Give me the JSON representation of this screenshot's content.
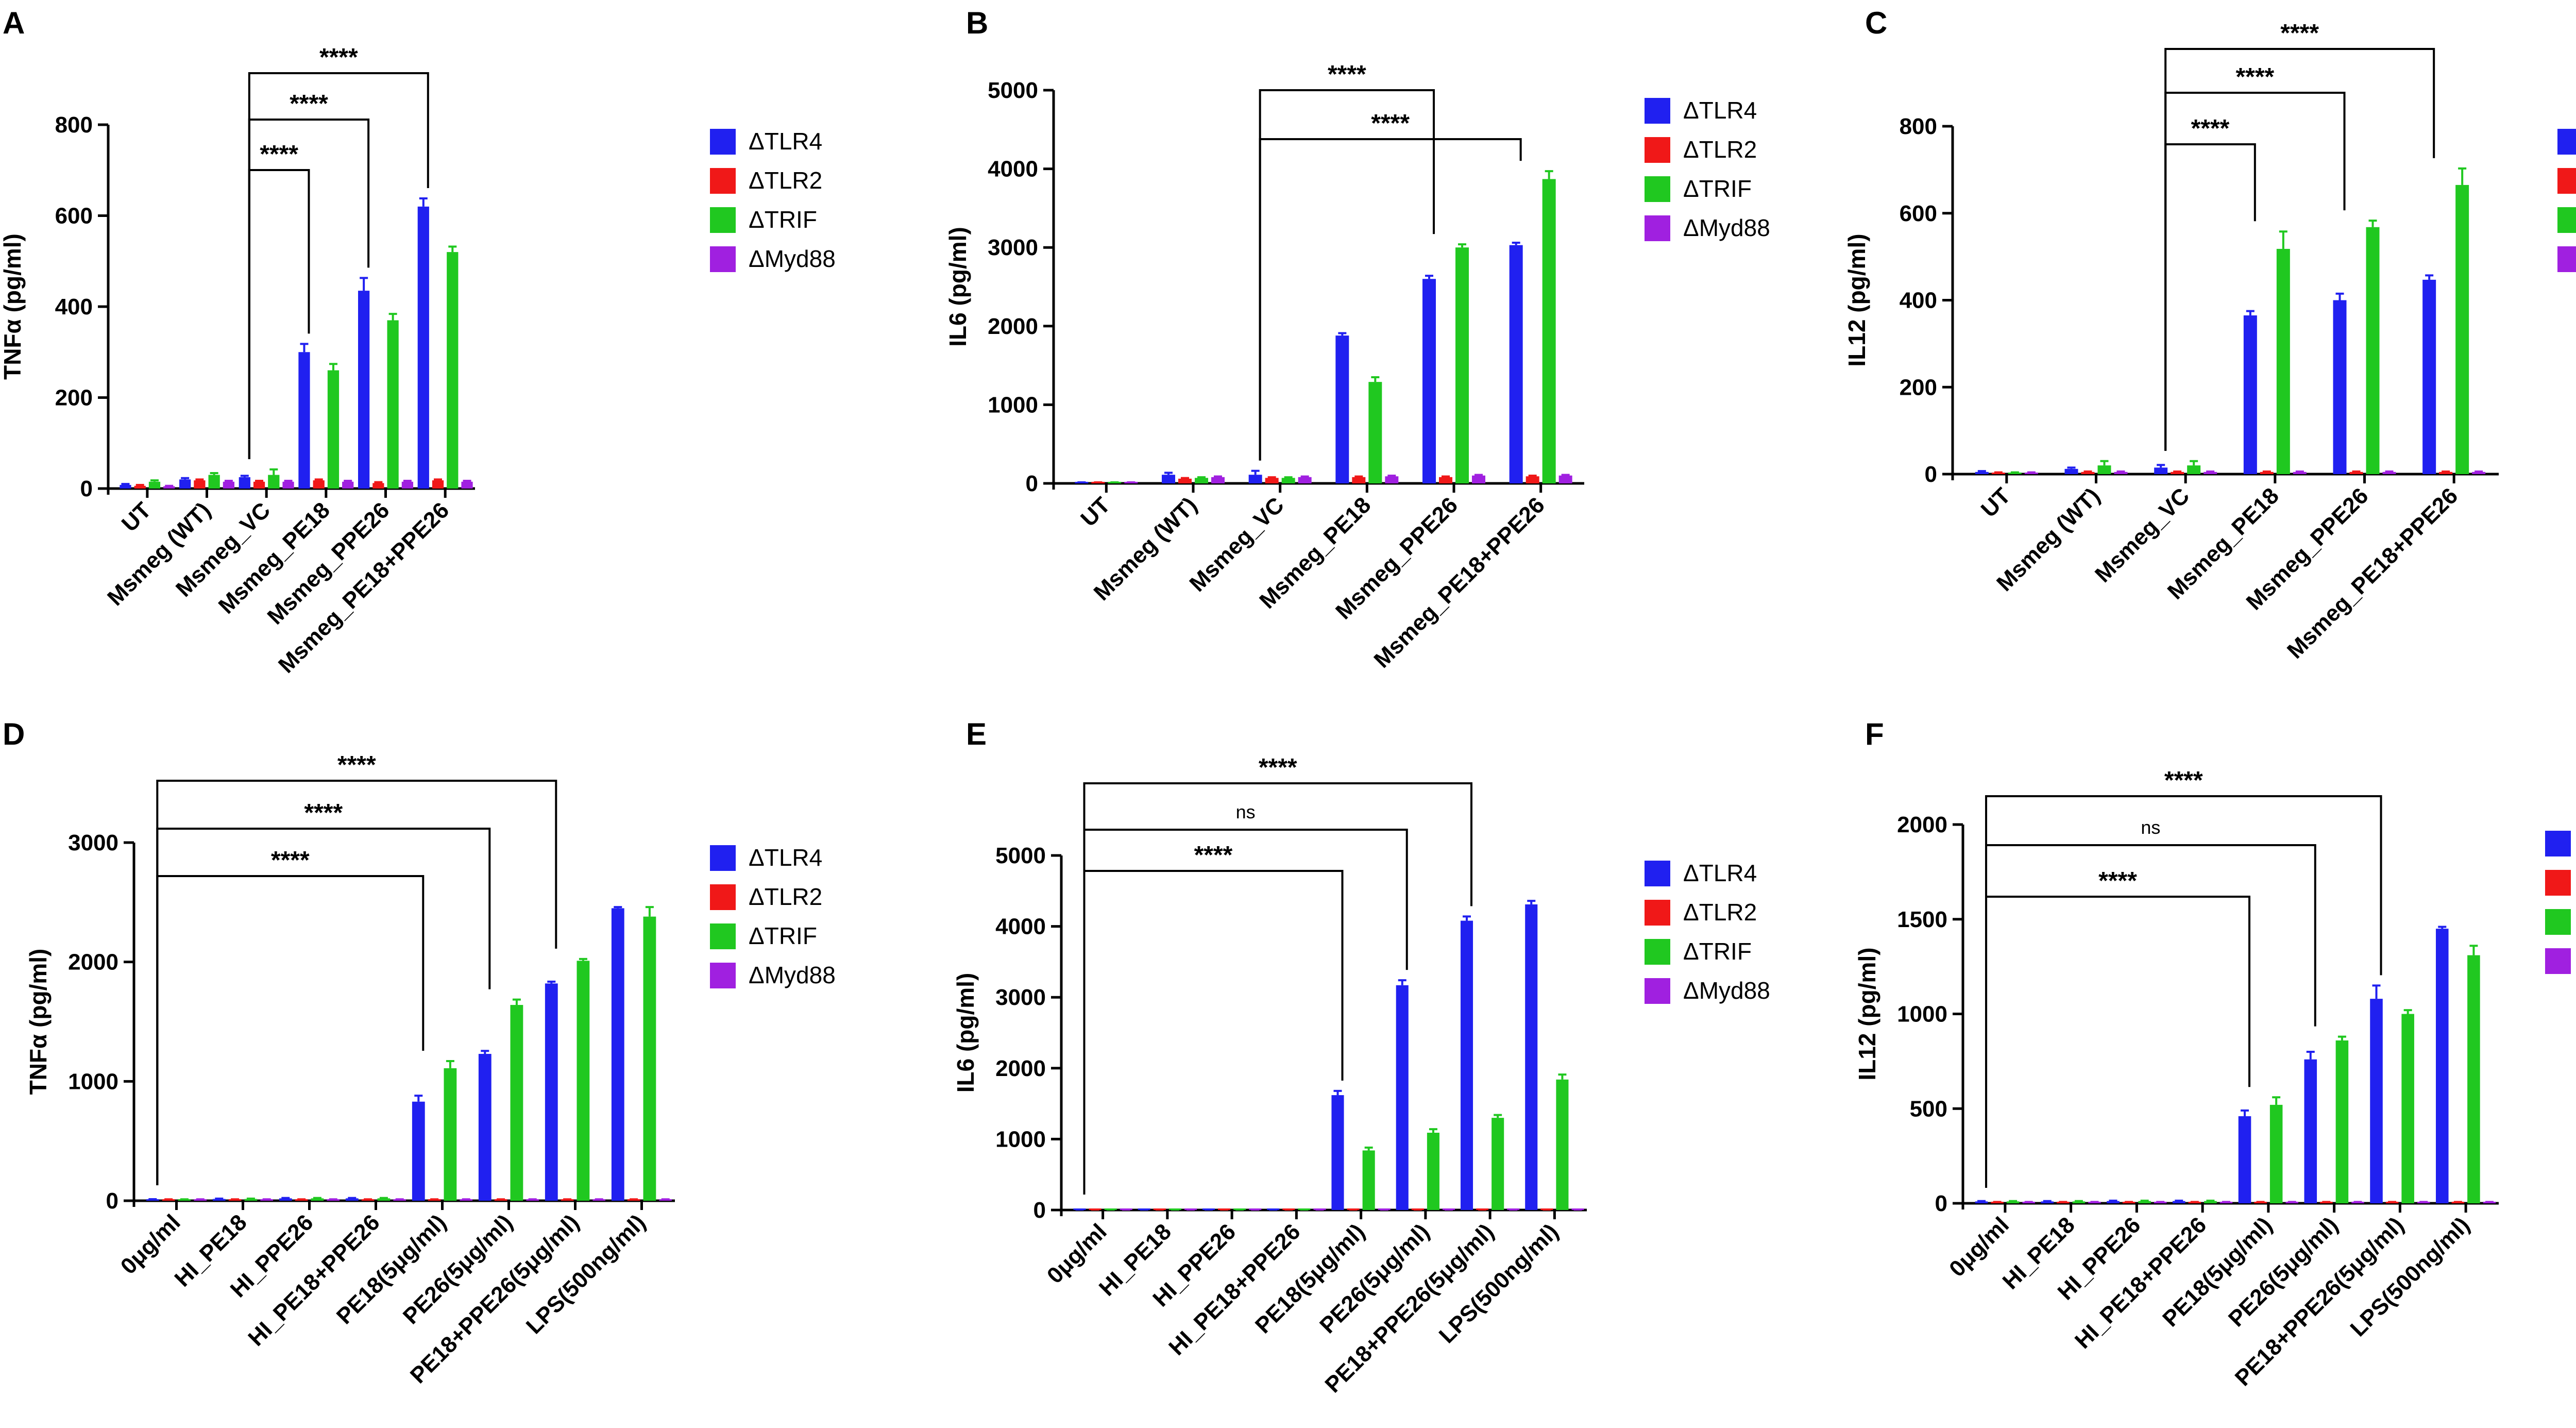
{
  "legend": [
    {
      "name": "ΔTLR4",
      "color": "#2020f0"
    },
    {
      "name": "ΔTLR2",
      "color": "#f01818"
    },
    {
      "name": "ΔTRIF",
      "color": "#20c820"
    },
    {
      "name": "ΔMyd88",
      "color": "#a020e0"
    }
  ],
  "chart_data": [
    {
      "panel": "A",
      "type": "bar",
      "ylabel": "TNFα (pg/ml)",
      "ylim": [
        0,
        800
      ],
      "yticks": [
        0,
        200,
        400,
        600,
        800
      ],
      "categories": [
        "UT",
        "Msmeg (WT)",
        "Msmeg_VC",
        "Msmeg_PE18",
        "Msmeg_PPE26",
        "Msmeg_PE18+PPE26"
      ],
      "series": [
        {
          "name": "ΔTLR4",
          "values": [
            8,
            20,
            25,
            300,
            435,
            620
          ],
          "errors": [
            2,
            3,
            3,
            18,
            28,
            18
          ]
        },
        {
          "name": "ΔTLR2",
          "values": [
            6,
            18,
            15,
            18,
            12,
            18
          ],
          "errors": [
            2,
            2,
            2,
            2,
            2,
            2
          ]
        },
        {
          "name": "ΔTRIF",
          "values": [
            15,
            30,
            30,
            260,
            370,
            520
          ],
          "errors": [
            3,
            4,
            12,
            14,
            14,
            12
          ]
        },
        {
          "name": "ΔMyd88",
          "values": [
            5,
            15,
            15,
            15,
            15,
            15
          ],
          "errors": [
            1,
            2,
            2,
            2,
            2,
            2
          ]
        }
      ],
      "brackets": [
        {
          "from": 2,
          "to": 3,
          "label": "****"
        },
        {
          "from": 2,
          "to": 4,
          "label": "****"
        },
        {
          "from": 2,
          "to": 5,
          "label": "****"
        }
      ]
    },
    {
      "panel": "B",
      "type": "bar",
      "ylabel": "IL6 (pg/ml)",
      "ylim": [
        0,
        5000
      ],
      "yticks": [
        0,
        1000,
        2000,
        3000,
        4000,
        5000
      ],
      "categories": [
        "UT",
        "Msmeg (WT)",
        "Msmeg_VC",
        "Msmeg_PE18",
        "Msmeg_PPE26",
        "Msmeg_PE18+PPE26"
      ],
      "series": [
        {
          "name": "ΔTLR4",
          "values": [
            10,
            110,
            110,
            1880,
            2600,
            3030
          ],
          "errors": [
            3,
            25,
            50,
            30,
            40,
            30
          ]
        },
        {
          "name": "ΔTLR2",
          "values": [
            10,
            60,
            70,
            80,
            80,
            90
          ],
          "errors": [
            3,
            8,
            8,
            8,
            8,
            8
          ]
        },
        {
          "name": "ΔTRIF",
          "values": [
            10,
            70,
            70,
            1290,
            3000,
            3870
          ],
          "errors": [
            3,
            8,
            8,
            60,
            40,
            100
          ]
        },
        {
          "name": "ΔMyd88",
          "values": [
            10,
            80,
            80,
            90,
            100,
            100
          ],
          "errors": [
            3,
            8,
            8,
            8,
            8,
            8
          ]
        }
      ],
      "brackets": [
        {
          "from": 2,
          "to": 4,
          "label": "****"
        },
        {
          "from": 2,
          "to": 5,
          "label": "****"
        }
      ]
    },
    {
      "panel": "C",
      "type": "bar",
      "ylabel": "IL12 (pg/ml)",
      "ylim": [
        0,
        800
      ],
      "yticks": [
        0,
        200,
        400,
        600,
        800
      ],
      "categories": [
        "UT",
        "Msmeg (WT)",
        "Msmeg_VC",
        "Msmeg_PE18",
        "Msmeg_PPE26",
        "Msmeg_PE18+PPE26"
      ],
      "series": [
        {
          "name": "ΔTLR4",
          "values": [
            5,
            12,
            15,
            365,
            400,
            447
          ],
          "errors": [
            2,
            3,
            6,
            10,
            15,
            10
          ]
        },
        {
          "name": "ΔTLR2",
          "values": [
            3,
            5,
            5,
            5,
            5,
            5
          ],
          "errors": [
            1,
            1,
            1,
            1,
            1,
            1
          ]
        },
        {
          "name": "ΔTRIF",
          "values": [
            3,
            20,
            20,
            518,
            568,
            665
          ],
          "errors": [
            1,
            10,
            10,
            40,
            15,
            38
          ]
        },
        {
          "name": "ΔMyd88",
          "values": [
            3,
            5,
            5,
            5,
            5,
            5
          ],
          "errors": [
            1,
            1,
            1,
            1,
            1,
            1
          ]
        }
      ],
      "brackets": [
        {
          "from": 2,
          "to": 3,
          "label": "****"
        },
        {
          "from": 2,
          "to": 4,
          "label": "****"
        },
        {
          "from": 2,
          "to": 5,
          "label": "****"
        }
      ]
    },
    {
      "panel": "D",
      "type": "bar",
      "ylabel": "TNFα (pg/ml)",
      "ylim": [
        0,
        3000
      ],
      "yticks": [
        0,
        1000,
        2000,
        3000
      ],
      "categories": [
        "0μg/ml",
        "HI_PE18",
        "HI_PPE26",
        "HI_PE18+PPE26",
        "PE18(5μg/ml)",
        "PE26(5μg/ml)",
        "PE18+PPE26(5μg/ml)",
        "LPS(500ng/ml)"
      ],
      "series": [
        {
          "name": "ΔTLR4",
          "values": [
            10,
            15,
            20,
            20,
            830,
            1230,
            1820,
            2450
          ],
          "errors": [
            3,
            3,
            3,
            3,
            50,
            25,
            15,
            10
          ]
        },
        {
          "name": "ΔTLR2",
          "values": [
            10,
            10,
            10,
            10,
            10,
            10,
            10,
            10
          ],
          "errors": [
            2,
            2,
            2,
            2,
            2,
            2,
            2,
            2
          ]
        },
        {
          "name": "ΔTRIF",
          "values": [
            10,
            15,
            20,
            20,
            1110,
            1640,
            2010,
            2380
          ],
          "errors": [
            2,
            3,
            3,
            3,
            60,
            45,
            15,
            80
          ]
        },
        {
          "name": "ΔMyd88",
          "values": [
            10,
            10,
            10,
            10,
            10,
            10,
            10,
            10
          ],
          "errors": [
            2,
            2,
            2,
            2,
            2,
            2,
            2,
            2
          ]
        }
      ],
      "brackets": [
        {
          "from": 0,
          "to": 4,
          "label": "****"
        },
        {
          "from": 0,
          "to": 5,
          "label": "****"
        },
        {
          "from": 0,
          "to": 6,
          "label": "****"
        }
      ]
    },
    {
      "panel": "E",
      "type": "bar",
      "ylabel": "IL6 (pg/ml)",
      "ylim": [
        0,
        5000
      ],
      "yticks": [
        0,
        1000,
        2000,
        3000,
        4000,
        5000
      ],
      "categories": [
        "0μg/ml",
        "HI_PE18",
        "HI_PPE26",
        "HI_PE18+PPE26",
        "PE18(5μg/ml)",
        "PE26(5μg/ml)",
        "PE18+PPE26(5μg/ml)",
        "LPS(500ng/ml)"
      ],
      "series": [
        {
          "name": "ΔTLR4",
          "values": [
            5,
            5,
            5,
            5,
            1620,
            3170,
            4080,
            4310
          ],
          "errors": [
            2,
            2,
            2,
            2,
            60,
            70,
            60,
            50
          ]
        },
        {
          "name": "ΔTLR2",
          "values": [
            5,
            5,
            5,
            5,
            5,
            5,
            5,
            5
          ],
          "errors": [
            2,
            2,
            2,
            2,
            2,
            2,
            2,
            2
          ]
        },
        {
          "name": "ΔTRIF",
          "values": [
            5,
            5,
            5,
            5,
            840,
            1090,
            1300,
            1840
          ],
          "errors": [
            2,
            2,
            2,
            2,
            40,
            50,
            40,
            70
          ]
        },
        {
          "name": "ΔMyd88",
          "values": [
            5,
            5,
            5,
            5,
            5,
            5,
            5,
            5
          ],
          "errors": [
            2,
            2,
            2,
            2,
            2,
            2,
            2,
            2
          ]
        }
      ],
      "brackets": [
        {
          "from": 0,
          "to": 4,
          "label": "****"
        },
        {
          "from": 0,
          "to": 5,
          "label": "ns"
        },
        {
          "from": 0,
          "to": 6,
          "label": "****"
        }
      ]
    },
    {
      "panel": "F",
      "type": "bar",
      "ylabel": "IL12 (pg/ml)",
      "ylim": [
        0,
        2000
      ],
      "yticks": [
        0,
        500,
        1000,
        1500,
        2000
      ],
      "categories": [
        "0μg/ml",
        "HI_PE18",
        "HI_PPE26",
        "HI_PE18+PPE26",
        "PE18(5μg/ml)",
        "PE26(5μg/ml)",
        "PE18+PPE26(5μg/ml)",
        "LPS(500ng/ml)"
      ],
      "series": [
        {
          "name": "ΔTLR4",
          "values": [
            10,
            10,
            12,
            12,
            460,
            760,
            1080,
            1450
          ],
          "errors": [
            2,
            2,
            2,
            2,
            30,
            40,
            70,
            10
          ]
        },
        {
          "name": "ΔTLR2",
          "values": [
            5,
            5,
            5,
            5,
            5,
            5,
            5,
            5
          ],
          "errors": [
            2,
            2,
            2,
            2,
            2,
            2,
            2,
            2
          ]
        },
        {
          "name": "ΔTRIF",
          "values": [
            10,
            10,
            12,
            12,
            520,
            860,
            1000,
            1310
          ],
          "errors": [
            2,
            2,
            2,
            2,
            40,
            20,
            20,
            50
          ]
        },
        {
          "name": "ΔMyd88",
          "values": [
            5,
            5,
            5,
            5,
            5,
            5,
            5,
            5
          ],
          "errors": [
            2,
            2,
            2,
            2,
            2,
            2,
            2,
            2
          ]
        }
      ],
      "brackets": [
        {
          "from": 0,
          "to": 4,
          "label": "****"
        },
        {
          "from": 0,
          "to": 5,
          "label": "ns"
        },
        {
          "from": 0,
          "to": 6,
          "label": "****"
        }
      ]
    }
  ]
}
